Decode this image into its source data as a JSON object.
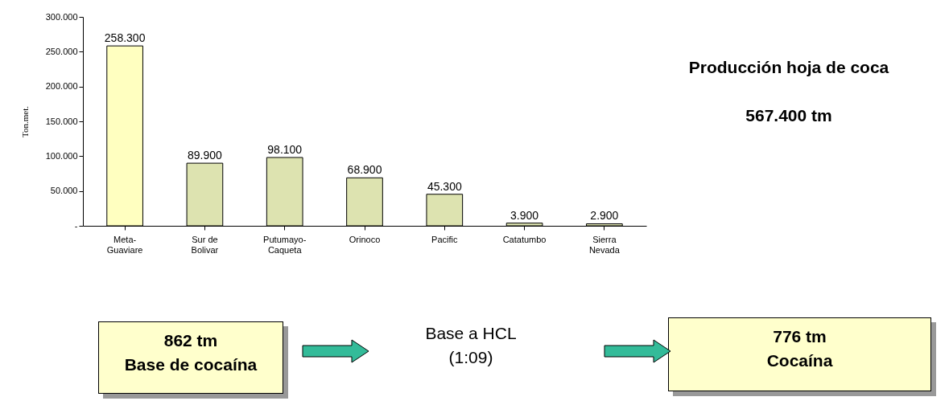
{
  "chart_data": {
    "type": "bar",
    "ylabel": "Ton.met.",
    "categories": [
      "Meta-Guaviare",
      "Sur de Bolivar",
      "Putumayo-Caqueta",
      "Orinoco",
      "Pacific",
      "Catatumbo",
      "Sierra Nevada"
    ],
    "values": [
      258300,
      89900,
      98100,
      68900,
      45300,
      3900,
      2900
    ],
    "value_labels": [
      "258.300",
      "89.900",
      "98.100",
      "68.900",
      "45.300",
      "3.900",
      "2.900"
    ],
    "colors": [
      "#ffffc0",
      "#dde3b0",
      "#dde3b0",
      "#dde3b0",
      "#dde3b0",
      "#dde3b0",
      "#dde3b0"
    ],
    "ylim": [
      0,
      300000
    ],
    "yticks": [
      {
        "value": 0,
        "label": "-"
      },
      {
        "value": 50000,
        "label": "50.000"
      },
      {
        "value": 100000,
        "label": "100.000"
      },
      {
        "value": 150000,
        "label": "150.000"
      },
      {
        "value": 200000,
        "label": "200.000"
      },
      {
        "value": 250000,
        "label": "250.000"
      },
      {
        "value": 300000,
        "label": "300.000"
      }
    ],
    "grid": false,
    "annotations": [
      "Producción hoja de coca",
      "567.400 tm",
      "862 tm",
      "Base de cocaína",
      "Base a HCL",
      "(1:09)",
      "776 tm",
      "Cocaína"
    ]
  }
}
